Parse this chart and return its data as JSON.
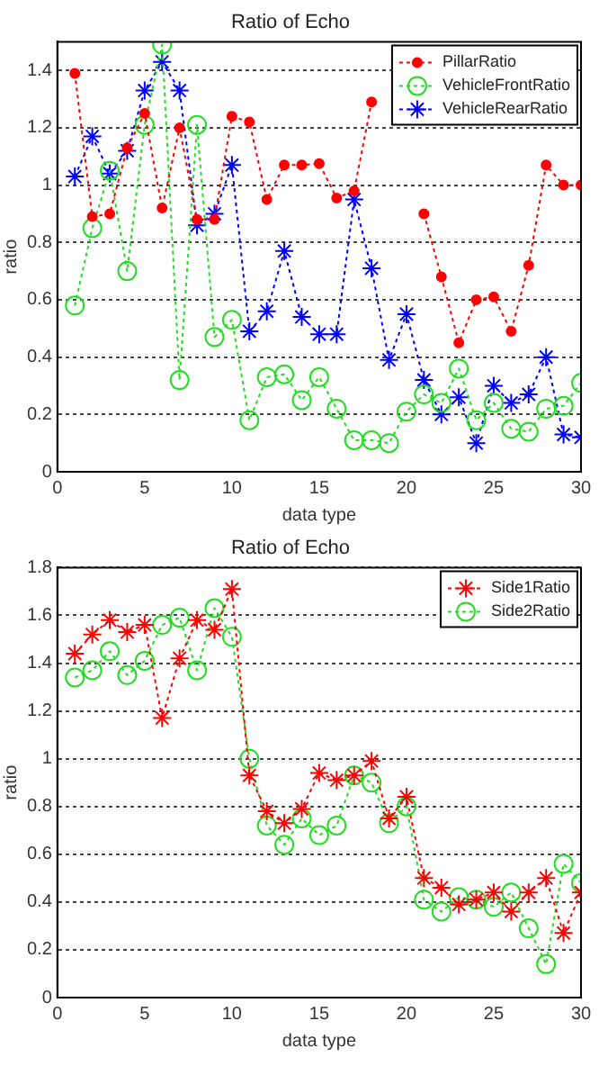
{
  "chart_data": [
    {
      "type": "line",
      "title": "Ratio of Echo",
      "xlabel": "data type",
      "ylabel": "ratio",
      "x": [
        1,
        2,
        3,
        4,
        5,
        6,
        7,
        8,
        9,
        10,
        11,
        12,
        13,
        14,
        15,
        16,
        17,
        18,
        19,
        20,
        21,
        22,
        23,
        24,
        25,
        26,
        27,
        28,
        29,
        30
      ],
      "series": [
        {
          "name": "PillarRatio",
          "color": "#ff0000",
          "marker": "circle",
          "values": [
            1.39,
            0.89,
            0.9,
            1.13,
            1.25,
            0.92,
            1.2,
            0.88,
            0.88,
            1.24,
            1.22,
            0.95,
            1.07,
            1.07,
            1.075,
            0.955,
            0.98,
            1.29,
            null,
            null,
            0.9,
            0.68,
            0.45,
            0.6,
            0.61,
            0.49,
            0.72,
            1.07,
            1.0,
            1.0
          ]
        },
        {
          "name": "VehicleFrontRatio",
          "color": "#22dd22",
          "marker": "circle",
          "values": [
            0.58,
            0.85,
            1.05,
            0.7,
            1.21,
            1.49,
            0.32,
            1.21,
            0.47,
            0.53,
            0.18,
            0.33,
            0.34,
            0.25,
            0.33,
            0.22,
            0.11,
            0.11,
            0.1,
            0.21,
            0.27,
            0.24,
            0.36,
            0.18,
            0.24,
            0.15,
            0.14,
            0.22,
            0.23,
            0.31
          ]
        },
        {
          "name": "VehicleRearRatio",
          "color": "#0000ff",
          "marker": "cross",
          "values": [
            1.03,
            1.17,
            1.04,
            1.12,
            1.33,
            1.43,
            1.33,
            0.86,
            0.9,
            1.07,
            0.49,
            0.56,
            0.77,
            0.54,
            0.48,
            0.48,
            0.95,
            0.71,
            0.39,
            0.55,
            0.32,
            0.2,
            0.26,
            0.1,
            0.3,
            0.24,
            0.27,
            0.4,
            0.13,
            0.12
          ]
        }
      ],
      "xlim": [
        0,
        30
      ],
      "xticks": [
        0,
        5,
        10,
        15,
        20,
        25,
        30
      ],
      "ylim": [
        0,
        1.5
      ],
      "yticks": [
        0,
        0.2,
        0.4,
        0.6,
        0.8,
        1,
        1.2,
        1.4
      ],
      "grid": "y",
      "legend": "top right",
      "line_style": "dotted"
    },
    {
      "type": "line",
      "title": "Ratio of Echo",
      "xlabel": "data type",
      "ylabel": "ratio",
      "x": [
        1,
        2,
        3,
        4,
        5,
        6,
        7,
        8,
        9,
        10,
        11,
        12,
        13,
        14,
        15,
        16,
        17,
        18,
        19,
        20,
        21,
        22,
        23,
        24,
        25,
        26,
        27,
        28,
        29,
        30
      ],
      "series": [
        {
          "name": "Side1Ratio",
          "color": "#ff0000",
          "marker": "cross",
          "values": [
            1.44,
            1.52,
            1.58,
            1.53,
            1.56,
            1.17,
            1.42,
            1.58,
            1.54,
            1.71,
            0.93,
            0.78,
            0.73,
            0.79,
            0.94,
            0.91,
            0.93,
            0.99,
            0.75,
            0.84,
            0.5,
            0.46,
            0.39,
            0.41,
            0.44,
            0.36,
            0.44,
            0.5,
            0.27,
            0.44
          ]
        },
        {
          "name": "Side2Ratio",
          "color": "#22dd22",
          "marker": "circle",
          "values": [
            1.34,
            1.37,
            1.45,
            1.35,
            1.41,
            1.56,
            1.59,
            1.37,
            1.63,
            1.51,
            1.0,
            0.72,
            0.64,
            0.75,
            0.68,
            0.72,
            0.93,
            0.9,
            0.73,
            0.8,
            0.41,
            0.36,
            0.42,
            0.41,
            0.38,
            0.44,
            0.29,
            0.14,
            0.56,
            0.48
          ]
        }
      ],
      "xlim": [
        0,
        30
      ],
      "xticks": [
        0,
        5,
        10,
        15,
        20,
        25,
        30
      ],
      "ylim": [
        0,
        1.8
      ],
      "yticks": [
        0,
        0.2,
        0.4,
        0.6,
        0.8,
        1,
        1.2,
        1.4,
        1.6,
        1.8
      ],
      "grid": "y",
      "legend": "top right",
      "line_style": "dotted"
    }
  ]
}
